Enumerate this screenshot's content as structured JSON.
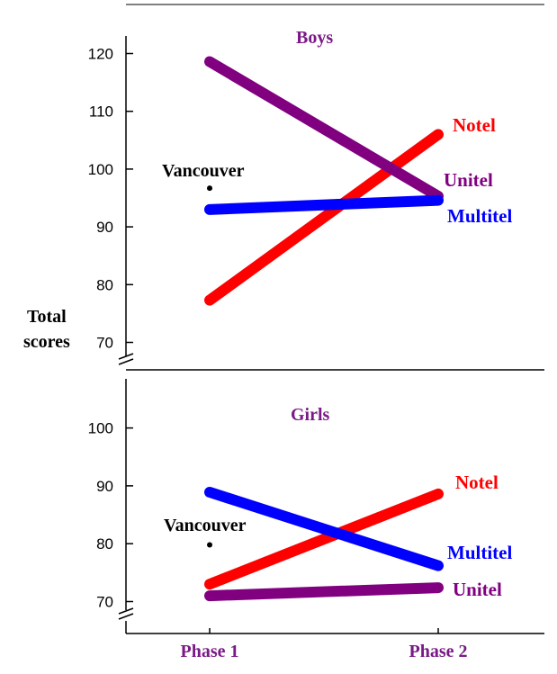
{
  "chart_data": [
    {
      "type": "line",
      "title": "Boys",
      "ylabel": "Total scores",
      "categories": [
        "Phase 1",
        "Phase 2"
      ],
      "ylim": [
        68,
        124
      ],
      "yticks": [
        70,
        80,
        90,
        100,
        110,
        120
      ],
      "series": [
        {
          "name": "Notel",
          "color": "#ff0000",
          "values": [
            77.3,
            106.0
          ]
        },
        {
          "name": "Unitel",
          "color": "#800080",
          "values": [
            118.6,
            95.3
          ]
        },
        {
          "name": "Multitel",
          "color": "#0000ff",
          "values": [
            93.0,
            94.6
          ]
        }
      ],
      "reference": {
        "label": "Vancouver",
        "category": "Phase 1",
        "value": 96.7
      }
    },
    {
      "type": "line",
      "title": "Girls",
      "categories": [
        "Phase 1",
        "Phase 2"
      ],
      "ylim": [
        68,
        104
      ],
      "yticks": [
        70,
        80,
        90,
        100
      ],
      "series": [
        {
          "name": "Notel",
          "color": "#ff0000",
          "values": [
            73.0,
            88.6
          ]
        },
        {
          "name": "Multitel",
          "color": "#0000ff",
          "values": [
            88.9,
            76.2
          ]
        },
        {
          "name": "Unitel",
          "color": "#800080",
          "values": [
            71.0,
            72.4
          ]
        }
      ],
      "reference": {
        "label": "Vancouver",
        "category": "Phase 1",
        "value": 79.8
      }
    }
  ],
  "colors": {
    "title": "#7a1a86",
    "notel": "#ff0000",
    "unitel": "#800080",
    "multitel": "#0000ff"
  }
}
